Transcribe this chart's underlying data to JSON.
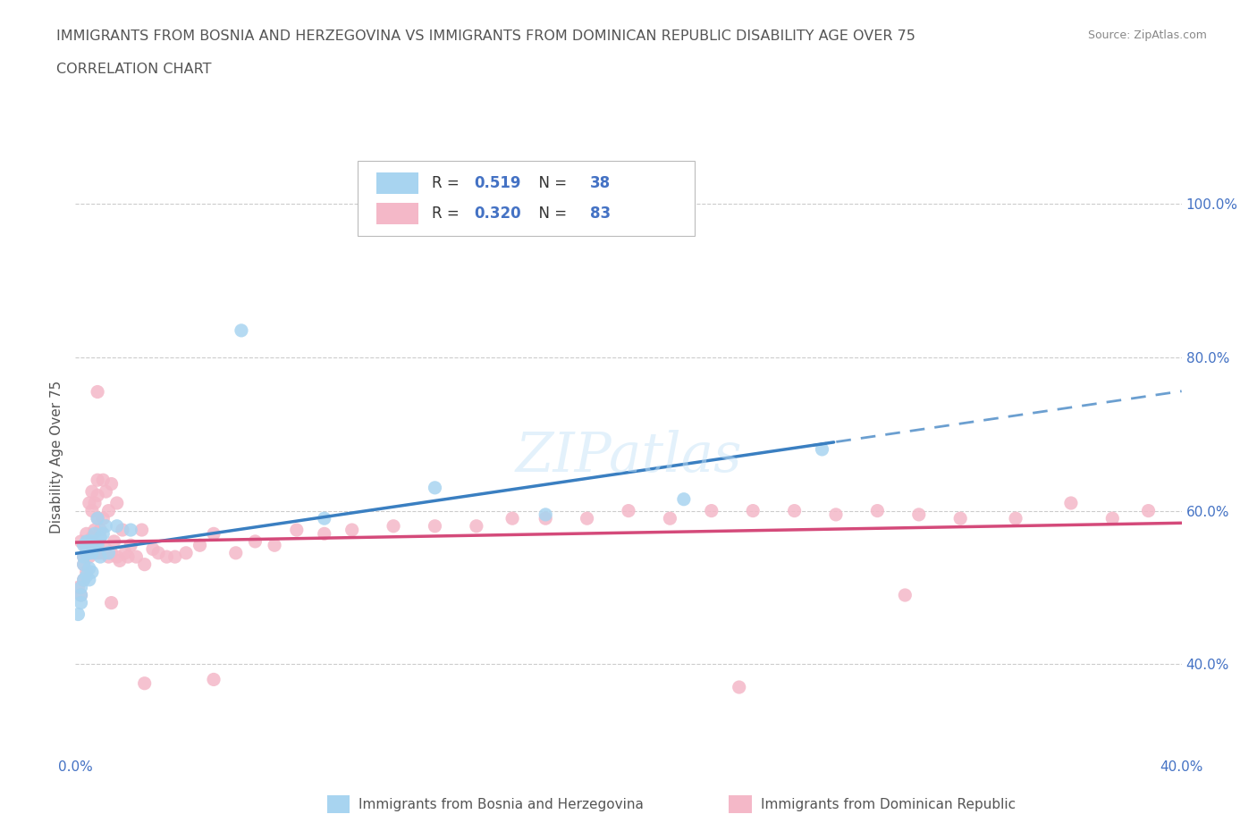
{
  "title_line1": "IMMIGRANTS FROM BOSNIA AND HERZEGOVINA VS IMMIGRANTS FROM DOMINICAN REPUBLIC DISABILITY AGE OVER 75",
  "title_line2": "CORRELATION CHART",
  "source": "Source: ZipAtlas.com",
  "ylabel": "Disability Age Over 75",
  "r_bosnia": 0.519,
  "n_bosnia": 38,
  "r_dominican": 0.32,
  "n_dominican": 83,
  "color_bosnia": "#a8d4f0",
  "color_dominican": "#f4b8c8",
  "line_color_bosnia": "#3a7fc1",
  "line_color_dominican": "#d44a7a",
  "bosnia_x": [
    0.001,
    0.002,
    0.002,
    0.002,
    0.003,
    0.003,
    0.003,
    0.003,
    0.004,
    0.004,
    0.004,
    0.004,
    0.005,
    0.005,
    0.005,
    0.005,
    0.005,
    0.006,
    0.006,
    0.006,
    0.006,
    0.007,
    0.007,
    0.008,
    0.008,
    0.009,
    0.009,
    0.01,
    0.011,
    0.012,
    0.015,
    0.02,
    0.06,
    0.09,
    0.13,
    0.17,
    0.22,
    0.27
  ],
  "bosnia_y": [
    0.465,
    0.49,
    0.5,
    0.48,
    0.51,
    0.54,
    0.555,
    0.53,
    0.545,
    0.515,
    0.555,
    0.56,
    0.51,
    0.525,
    0.545,
    0.56,
    0.555,
    0.52,
    0.55,
    0.56,
    0.545,
    0.555,
    0.57,
    0.555,
    0.59,
    0.54,
    0.565,
    0.57,
    0.58,
    0.545,
    0.58,
    0.575,
    0.835,
    0.59,
    0.63,
    0.595,
    0.615,
    0.68
  ],
  "dominican_x": [
    0.001,
    0.002,
    0.002,
    0.003,
    0.003,
    0.003,
    0.004,
    0.004,
    0.004,
    0.005,
    0.005,
    0.005,
    0.006,
    0.006,
    0.006,
    0.006,
    0.007,
    0.007,
    0.007,
    0.008,
    0.008,
    0.008,
    0.008,
    0.009,
    0.009,
    0.01,
    0.01,
    0.01,
    0.011,
    0.011,
    0.012,
    0.012,
    0.013,
    0.013,
    0.014,
    0.015,
    0.015,
    0.016,
    0.017,
    0.018,
    0.019,
    0.02,
    0.022,
    0.024,
    0.025,
    0.028,
    0.03,
    0.033,
    0.036,
    0.04,
    0.045,
    0.05,
    0.058,
    0.065,
    0.072,
    0.08,
    0.09,
    0.1,
    0.115,
    0.13,
    0.145,
    0.158,
    0.17,
    0.185,
    0.2,
    0.215,
    0.23,
    0.245,
    0.26,
    0.275,
    0.29,
    0.305,
    0.32,
    0.34,
    0.36,
    0.375,
    0.388,
    0.008,
    0.013,
    0.3,
    0.025,
    0.05,
    0.24
  ],
  "dominican_y": [
    0.5,
    0.49,
    0.56,
    0.51,
    0.54,
    0.53,
    0.55,
    0.57,
    0.52,
    0.555,
    0.61,
    0.54,
    0.555,
    0.565,
    0.6,
    0.625,
    0.545,
    0.575,
    0.61,
    0.545,
    0.59,
    0.62,
    0.64,
    0.545,
    0.575,
    0.545,
    0.59,
    0.64,
    0.55,
    0.625,
    0.54,
    0.6,
    0.545,
    0.635,
    0.56,
    0.54,
    0.61,
    0.535,
    0.575,
    0.545,
    0.54,
    0.555,
    0.54,
    0.575,
    0.53,
    0.55,
    0.545,
    0.54,
    0.54,
    0.545,
    0.555,
    0.57,
    0.545,
    0.56,
    0.555,
    0.575,
    0.57,
    0.575,
    0.58,
    0.58,
    0.58,
    0.59,
    0.59,
    0.59,
    0.6,
    0.59,
    0.6,
    0.6,
    0.6,
    0.595,
    0.6,
    0.595,
    0.59,
    0.59,
    0.61,
    0.59,
    0.6,
    0.755,
    0.48,
    0.49,
    0.375,
    0.38,
    0.37
  ],
  "xmin": 0.0,
  "xmax": 0.4,
  "ymin": 0.28,
  "ymax": 1.06,
  "yticks": [
    0.4,
    0.6,
    0.8,
    1.0
  ],
  "ytick_labels": [
    "40.0%",
    "60.0%",
    "80.0%",
    "100.0%"
  ],
  "xtick_left_label": "0.0%",
  "xtick_right_label": "40.0%",
  "grid_color": "#cccccc",
  "background_color": "#ffffff",
  "watermark": "ZIPatlas",
  "legend_label_bosnia": "Immigrants from Bosnia and Herzegovina",
  "legend_label_dominican": "Immigrants from Dominican Republic"
}
